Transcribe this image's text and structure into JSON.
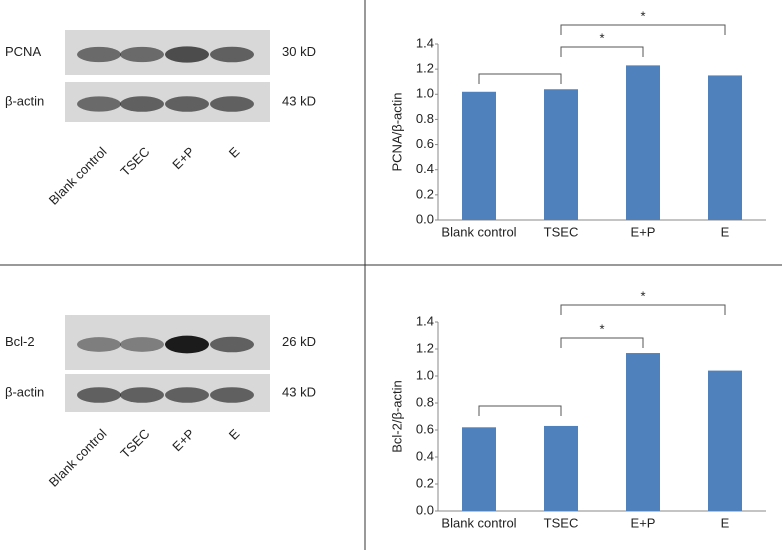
{
  "blots": [
    {
      "bands": [
        {
          "label": "PCNA",
          "size": "30 kD"
        },
        {
          "label": "β-actin",
          "size": "43 kD"
        }
      ],
      "lanes": [
        "Blank control",
        "TSEC",
        "E+P",
        "E"
      ]
    },
    {
      "bands": [
        {
          "label": "Bcl-2",
          "size": "26 kD"
        },
        {
          "label": "β-actin",
          "size": "43 kD"
        }
      ],
      "lanes": [
        "Blank control",
        "TSEC",
        "E+P",
        "E"
      ]
    }
  ],
  "chart_data": [
    {
      "type": "bar",
      "y_label": "PCNA/β-actin",
      "categories": [
        "Blank control",
        "TSEC",
        "E+P",
        "E"
      ],
      "values": [
        1.02,
        1.04,
        1.23,
        1.15
      ],
      "color": "#4f81bd",
      "ylim": [
        0,
        1.4
      ],
      "yticks": [
        {
          "value": 0,
          "label": "0.0"
        },
        0.2,
        0.4,
        0.6,
        0.8,
        {
          "value": 1,
          "label": "1.0"
        },
        1.2,
        1.4
      ],
      "significance": [
        {
          "pair": [
            "Blank control",
            "TSEC"
          ]
        },
        {
          "pair": [
            "TSEC",
            "E+P"
          ],
          "label": "*"
        },
        {
          "pair": [
            "TSEC",
            "E"
          ],
          "label": "*"
        }
      ]
    },
    {
      "type": "bar",
      "y_label": "Bcl-2/β-actin",
      "categories": [
        "Blank control",
        "TSEC",
        "E+P",
        "E"
      ],
      "values": [
        0.62,
        0.63,
        1.17,
        1.04
      ],
      "color": "#4f81bd",
      "ylim": [
        0,
        1.4
      ],
      "yticks": [
        {
          "value": 0,
          "label": "0.0"
        },
        0.2,
        0.4,
        0.6,
        0.8,
        {
          "value": 1,
          "label": "1.0"
        },
        1.2,
        1.4
      ],
      "significance": [
        {
          "pair": [
            "Blank control",
            "TSEC"
          ]
        },
        {
          "pair": [
            "TSEC",
            "E+P"
          ],
          "label": "*"
        },
        {
          "pair": [
            "TSEC",
            "E"
          ],
          "label": "*"
        }
      ]
    }
  ]
}
